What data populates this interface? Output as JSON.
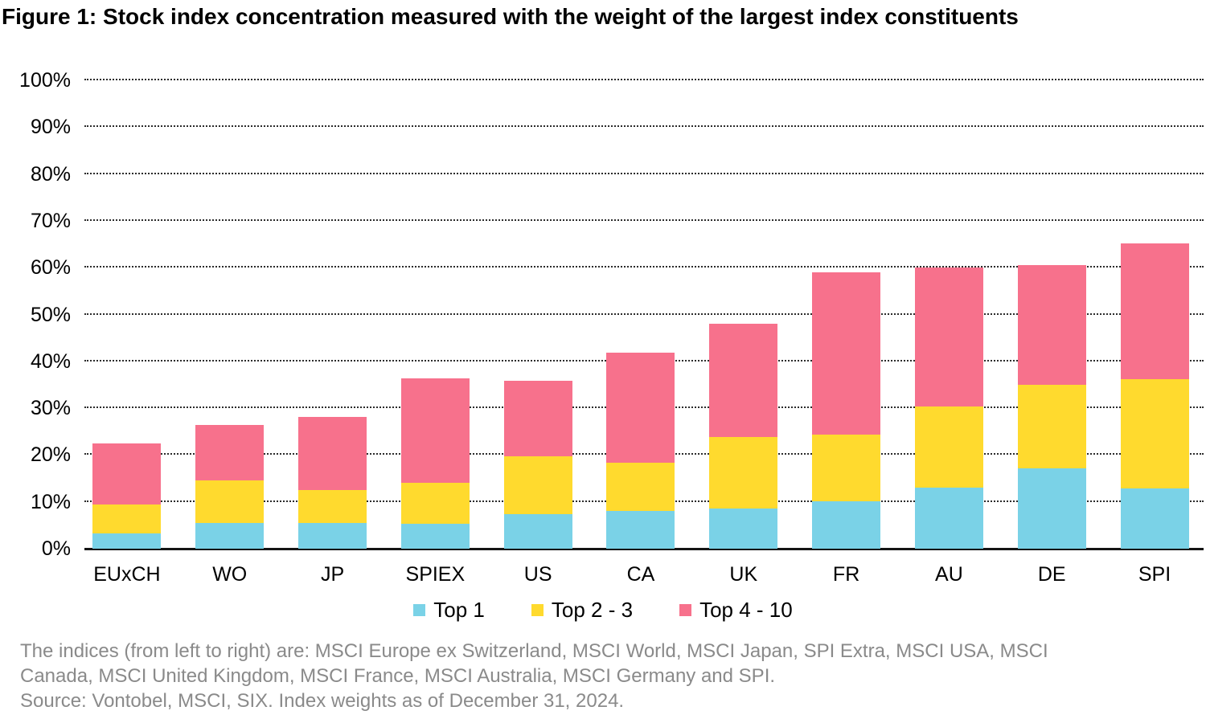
{
  "title": "Figure 1: Stock index concentration measured with the weight of the largest index constituents",
  "chart_data": {
    "type": "bar",
    "stacked": true,
    "categories": [
      "EUxCH",
      "WO",
      "JP",
      "SPIEX",
      "US",
      "CA",
      "UK",
      "FR",
      "AU",
      "DE",
      "SPI"
    ],
    "series": [
      {
        "name": "Top 1",
        "color": "#7ad2e7",
        "values": [
          3.2,
          5.5,
          5.5,
          5.3,
          7.3,
          8.1,
          8.5,
          10.1,
          13.0,
          17.1,
          12.8
        ]
      },
      {
        "name": "Top 2 - 3",
        "color": "#ffda2e",
        "values": [
          6.2,
          9.0,
          7.0,
          8.8,
          12.4,
          10.3,
          15.4,
          14.3,
          17.4,
          17.9,
          23.4
        ]
      },
      {
        "name": "Top 4 - 10",
        "color": "#f7718c",
        "values": [
          13.1,
          12.0,
          15.6,
          22.3,
          16.1,
          23.5,
          24.2,
          34.6,
          29.7,
          25.6,
          29.0
        ]
      }
    ],
    "totals": [
      22.5,
      26.5,
      28.1,
      36.4,
      35.8,
      41.9,
      48.1,
      59.0,
      60.1,
      60.6,
      65.2
    ],
    "xlabel": "",
    "ylabel": "",
    "ylim": [
      0,
      100
    ],
    "ytick_step": 10,
    "ytick_labels": [
      "0%",
      "10%",
      "20%",
      "30%",
      "40%",
      "50%",
      "60%",
      "70%",
      "80%",
      "90%",
      "100%"
    ],
    "grid": "horizontal-dotted",
    "legend_position": "bottom"
  },
  "footnote": {
    "line1": "The indices (from left to right) are: MSCI Europe ex Switzerland, MSCI World, MSCI Japan, SPI Extra, MSCI USA, MSCI",
    "line2": "Canada, MSCI United Kingdom, MSCI France, MSCI Australia, MSCI Germany and SPI.",
    "source": "Source: Vontobel, MSCI, SIX. Index weights as of December 31, 2024."
  },
  "colors": {
    "top1": "#7ad2e7",
    "top2_3": "#ffda2e",
    "top4_10": "#f7718c",
    "axis": "#141414",
    "gridline": "#2b2b2b",
    "footnote_text": "#8a8a8a",
    "background": "#ffffff"
  }
}
